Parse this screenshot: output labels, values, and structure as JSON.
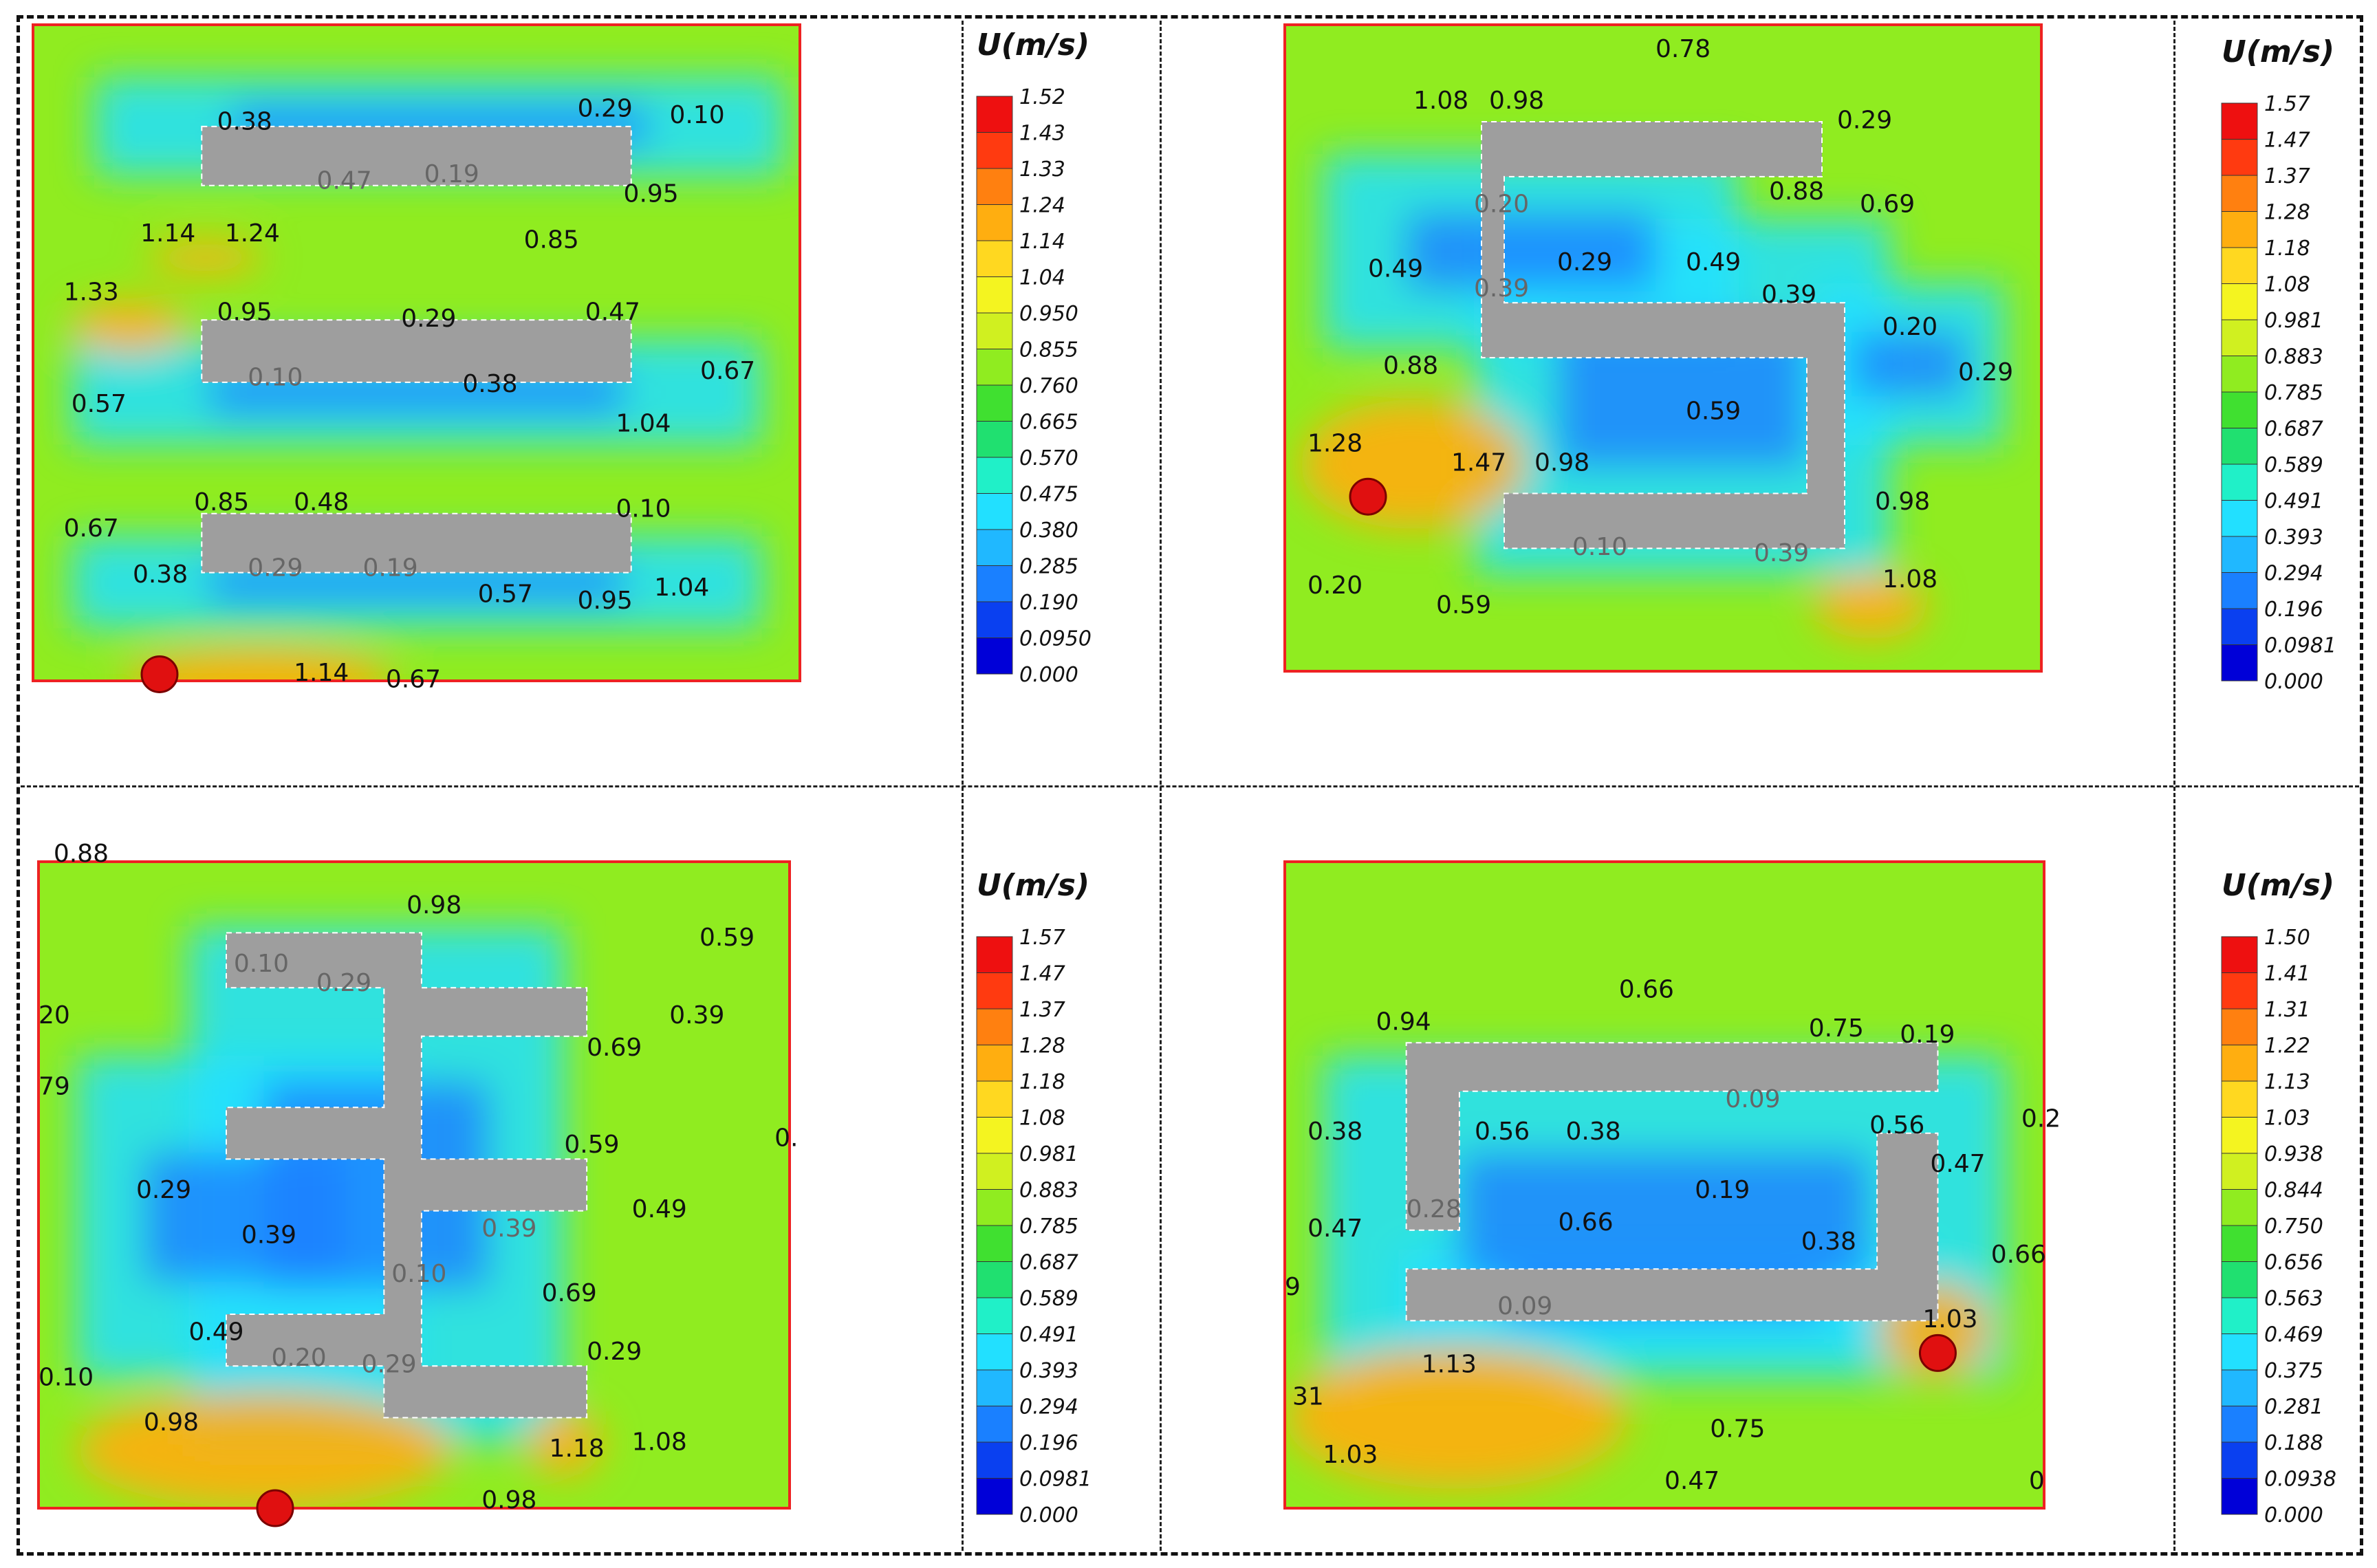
{
  "figure": {
    "panel_count": 4,
    "grid": "2x2"
  },
  "colors": {
    "colormap": [
      "#0000d8",
      "#0a40f0",
      "#1a80ff",
      "#20b8ff",
      "#22e0ff",
      "#20f0c8",
      "#20e070",
      "#40e030",
      "#90ec20",
      "#d0f020",
      "#f4f420",
      "#ffd820",
      "#ffae10",
      "#ff8010",
      "#ff3a10",
      "#ee1010"
    ],
    "obstacle_fill": "#9e9e9e",
    "obstacle_stroke": "#ffffff",
    "domain_border": "#ee2222",
    "source_marker": "#e01010"
  },
  "chart_data": [
    {
      "type": "heatmap",
      "title": "",
      "legend_title": "U(m/s)",
      "colorbar_ticks": [
        "1.52",
        "1.43",
        "1.33",
        "1.24",
        "1.14",
        "1.04",
        "0.950",
        "0.855",
        "0.760",
        "0.665",
        "0.570",
        "0.475",
        "0.380",
        "0.285",
        "0.190",
        "0.0950",
        "0.000"
      ],
      "range": [
        0,
        1.52
      ],
      "source_marker": {
        "x": 0.165,
        "y": 0.99
      },
      "annotations": [
        {
          "text": "0.38",
          "x": 0.24,
          "y": 0.16
        },
        {
          "text": "0.29",
          "x": 0.71,
          "y": 0.14
        },
        {
          "text": "0.10",
          "x": 0.83,
          "y": 0.15
        },
        {
          "text": "0.47",
          "x": 0.37,
          "y": 0.25,
          "dim": true
        },
        {
          "text": "0.19",
          "x": 0.51,
          "y": 0.24,
          "dim": true
        },
        {
          "text": "0.95",
          "x": 0.77,
          "y": 0.27
        },
        {
          "text": "1.14",
          "x": 0.14,
          "y": 0.33
        },
        {
          "text": "1.24",
          "x": 0.25,
          "y": 0.33
        },
        {
          "text": "0.85",
          "x": 0.64,
          "y": 0.34
        },
        {
          "text": "1.33",
          "x": 0.04,
          "y": 0.42
        },
        {
          "text": "0.95",
          "x": 0.24,
          "y": 0.45
        },
        {
          "text": "0.29",
          "x": 0.48,
          "y": 0.46
        },
        {
          "text": "0.47",
          "x": 0.72,
          "y": 0.45
        },
        {
          "text": "0.10",
          "x": 0.28,
          "y": 0.55,
          "dim": true
        },
        {
          "text": "0.67",
          "x": 0.87,
          "y": 0.54
        },
        {
          "text": "0.57",
          "x": 0.05,
          "y": 0.59
        },
        {
          "text": "0.38",
          "x": 0.56,
          "y": 0.56
        },
        {
          "text": "1.04",
          "x": 0.76,
          "y": 0.62
        },
        {
          "text": "0.85",
          "x": 0.21,
          "y": 0.74
        },
        {
          "text": "0.48",
          "x": 0.34,
          "y": 0.74
        },
        {
          "text": "0.10",
          "x": 0.76,
          "y": 0.75
        },
        {
          "text": "0.67",
          "x": 0.04,
          "y": 0.78
        },
        {
          "text": "0.38",
          "x": 0.13,
          "y": 0.85
        },
        {
          "text": "0.29",
          "x": 0.28,
          "y": 0.84,
          "dim": true
        },
        {
          "text": "0.19",
          "x": 0.43,
          "y": 0.84,
          "dim": true
        },
        {
          "text": "0.57",
          "x": 0.58,
          "y": 0.88
        },
        {
          "text": "0.95",
          "x": 0.71,
          "y": 0.89
        },
        {
          "text": "1.04",
          "x": 0.81,
          "y": 0.87
        },
        {
          "text": "1.14",
          "x": 0.34,
          "y": 1.0
        },
        {
          "text": "0.67",
          "x": 0.46,
          "y": 1.01
        }
      ]
    },
    {
      "type": "heatmap",
      "title": "",
      "legend_title": "U(m/s)",
      "colorbar_ticks": [
        "1.57",
        "1.47",
        "1.37",
        "1.28",
        "1.18",
        "1.08",
        "0.981",
        "0.883",
        "0.785",
        "0.687",
        "0.589",
        "0.491",
        "0.393",
        "0.294",
        "0.196",
        "0.0981",
        "0.000"
      ],
      "range": [
        0,
        1.57
      ],
      "source_marker": {
        "x": 0.11,
        "y": 0.73
      },
      "annotations": [
        {
          "text": "0.78",
          "x": 0.49,
          "y": 0.05
        },
        {
          "text": "1.08",
          "x": 0.17,
          "y": 0.13
        },
        {
          "text": "0.98",
          "x": 0.27,
          "y": 0.13
        },
        {
          "text": "0.29",
          "x": 0.73,
          "y": 0.16
        },
        {
          "text": "0.20",
          "x": 0.25,
          "y": 0.29,
          "dim": true
        },
        {
          "text": "0.88",
          "x": 0.64,
          "y": 0.27
        },
        {
          "text": "0.69",
          "x": 0.76,
          "y": 0.29
        },
        {
          "text": "0.49",
          "x": 0.11,
          "y": 0.39
        },
        {
          "text": "0.29",
          "x": 0.36,
          "y": 0.38
        },
        {
          "text": "0.49",
          "x": 0.53,
          "y": 0.38
        },
        {
          "text": "0.39",
          "x": 0.25,
          "y": 0.42,
          "dim": true
        },
        {
          "text": "0.39",
          "x": 0.63,
          "y": 0.43
        },
        {
          "text": "0.20",
          "x": 0.79,
          "y": 0.48
        },
        {
          "text": "0.29",
          "x": 0.89,
          "y": 0.55
        },
        {
          "text": "0.88",
          "x": 0.13,
          "y": 0.54
        },
        {
          "text": "0.59",
          "x": 0.53,
          "y": 0.61
        },
        {
          "text": "1.28",
          "x": 0.03,
          "y": 0.66
        },
        {
          "text": "1.47",
          "x": 0.22,
          "y": 0.69
        },
        {
          "text": "0.98",
          "x": 0.33,
          "y": 0.69
        },
        {
          "text": "0.98",
          "x": 0.78,
          "y": 0.75
        },
        {
          "text": "0.10",
          "x": 0.38,
          "y": 0.82,
          "dim": true
        },
        {
          "text": "0.39",
          "x": 0.62,
          "y": 0.83,
          "dim": true
        },
        {
          "text": "0.20",
          "x": 0.03,
          "y": 0.88
        },
        {
          "text": "0.59",
          "x": 0.2,
          "y": 0.91
        },
        {
          "text": "1.08",
          "x": 0.79,
          "y": 0.87
        }
      ]
    },
    {
      "type": "heatmap",
      "title": "",
      "legend_title": "U(m/s)",
      "colorbar_ticks": [
        "1.57",
        "1.47",
        "1.37",
        "1.28",
        "1.18",
        "1.08",
        "0.981",
        "0.883",
        "0.785",
        "0.687",
        "0.589",
        "0.491",
        "0.393",
        "0.294",
        "0.196",
        "0.0981",
        "0.000"
      ],
      "range": [
        0,
        1.57
      ],
      "source_marker": {
        "x": 0.315,
        "y": 1.0
      },
      "annotations": [
        {
          "text": "0.88",
          "x": 0.02,
          "y": 0.0
        },
        {
          "text": "0.98",
          "x": 0.49,
          "y": 0.08
        },
        {
          "text": "0.59",
          "x": 0.88,
          "y": 0.13
        },
        {
          "text": "0.10",
          "x": 0.26,
          "y": 0.17,
          "dim": true
        },
        {
          "text": "0.29",
          "x": 0.37,
          "y": 0.2,
          "dim": true
        },
        {
          "text": "20",
          "x": 0.0,
          "y": 0.25
        },
        {
          "text": "0.39",
          "x": 0.84,
          "y": 0.25
        },
        {
          "text": "0.69",
          "x": 0.73,
          "y": 0.3
        },
        {
          "text": "79",
          "x": 0.0,
          "y": 0.36
        },
        {
          "text": "0.59",
          "x": 0.7,
          "y": 0.45
        },
        {
          "text": "0.",
          "x": 0.98,
          "y": 0.44
        },
        {
          "text": "0.29",
          "x": 0.13,
          "y": 0.52
        },
        {
          "text": "0.49",
          "x": 0.79,
          "y": 0.55
        },
        {
          "text": "0.39",
          "x": 0.27,
          "y": 0.59
        },
        {
          "text": "0.39",
          "x": 0.59,
          "y": 0.58,
          "dim": true
        },
        {
          "text": "0.10",
          "x": 0.47,
          "y": 0.65,
          "dim": true
        },
        {
          "text": "0.69",
          "x": 0.67,
          "y": 0.68
        },
        {
          "text": "0.49",
          "x": 0.2,
          "y": 0.74
        },
        {
          "text": "0.20",
          "x": 0.31,
          "y": 0.78,
          "dim": true
        },
        {
          "text": "0.29",
          "x": 0.43,
          "y": 0.79,
          "dim": true
        },
        {
          "text": "0.29",
          "x": 0.73,
          "y": 0.77
        },
        {
          "text": "0.10",
          "x": 0.0,
          "y": 0.81
        },
        {
          "text": "0.98",
          "x": 0.14,
          "y": 0.88
        },
        {
          "text": "1.18",
          "x": 0.68,
          "y": 0.92
        },
        {
          "text": "1.08",
          "x": 0.79,
          "y": 0.91
        },
        {
          "text": "0.98",
          "x": 0.59,
          "y": 1.0
        }
      ]
    },
    {
      "type": "heatmap",
      "title": "",
      "legend_title": "U(m/s)",
      "colorbar_ticks": [
        "1.50",
        "1.41",
        "1.31",
        "1.22",
        "1.13",
        "1.03",
        "0.938",
        "0.844",
        "0.750",
        "0.656",
        "0.563",
        "0.469",
        "0.375",
        "0.281",
        "0.188",
        "0.0938",
        "0.000"
      ],
      "range": [
        0,
        1.5
      ],
      "source_marker": {
        "x": 0.86,
        "y": 0.76
      },
      "annotations": [
        {
          "text": "0.66",
          "x": 0.44,
          "y": 0.21
        },
        {
          "text": "0.94",
          "x": 0.12,
          "y": 0.26
        },
        {
          "text": "0.75",
          "x": 0.69,
          "y": 0.27
        },
        {
          "text": "0.19",
          "x": 0.81,
          "y": 0.28
        },
        {
          "text": "0.09",
          "x": 0.58,
          "y": 0.38,
          "dim": true
        },
        {
          "text": "0.2",
          "x": 0.97,
          "y": 0.41
        },
        {
          "text": "0.38",
          "x": 0.03,
          "y": 0.43
        },
        {
          "text": "0.56",
          "x": 0.25,
          "y": 0.43
        },
        {
          "text": "0.38",
          "x": 0.37,
          "y": 0.43
        },
        {
          "text": "0.56",
          "x": 0.77,
          "y": 0.42
        },
        {
          "text": "0.47",
          "x": 0.85,
          "y": 0.48
        },
        {
          "text": "0.19",
          "x": 0.54,
          "y": 0.52
        },
        {
          "text": "0.28",
          "x": 0.16,
          "y": 0.55,
          "dim": true
        },
        {
          "text": "0.47",
          "x": 0.03,
          "y": 0.58
        },
        {
          "text": "0.66",
          "x": 0.36,
          "y": 0.57
        },
        {
          "text": "0.38",
          "x": 0.68,
          "y": 0.6
        },
        {
          "text": "0.66",
          "x": 0.93,
          "y": 0.62
        },
        {
          "text": "9",
          "x": 0.0,
          "y": 0.67
        },
        {
          "text": "0.09",
          "x": 0.28,
          "y": 0.7,
          "dim": true
        },
        {
          "text": "1.03",
          "x": 0.84,
          "y": 0.72
        },
        {
          "text": "1.13",
          "x": 0.18,
          "y": 0.79
        },
        {
          "text": "31",
          "x": 0.01,
          "y": 0.84
        },
        {
          "text": "0.75",
          "x": 0.56,
          "y": 0.89
        },
        {
          "text": "1.03",
          "x": 0.05,
          "y": 0.93
        },
        {
          "text": "0.47",
          "x": 0.5,
          "y": 0.97
        },
        {
          "text": "0",
          "x": 0.98,
          "y": 0.97
        }
      ]
    }
  ]
}
